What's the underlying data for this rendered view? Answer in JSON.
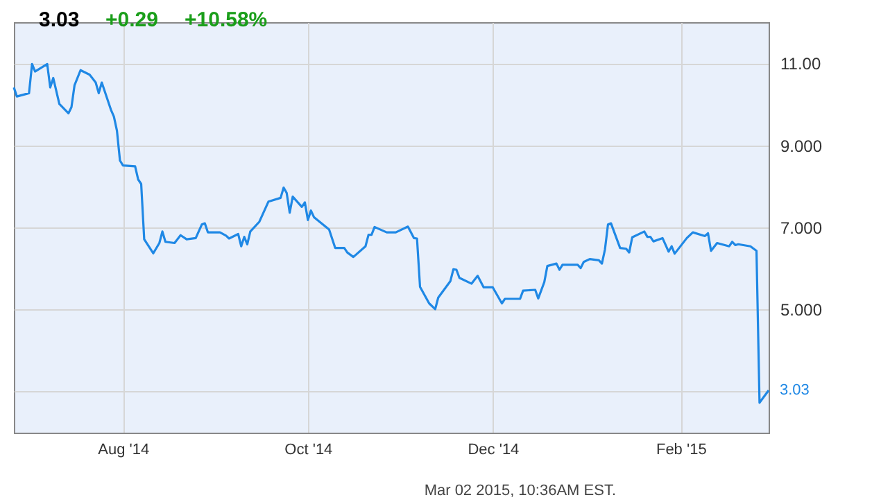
{
  "chart_data": {
    "type": "line",
    "title": "3.03",
    "annotations": [
      "+0.29",
      "+10.58%",
      "Mar 02 2015, 10:36AM EST.",
      {
        "text": "3.03",
        "x": "2015-03-02",
        "y": 3.03
      }
    ],
    "x": [
      "2014-06-26",
      "2014-06-27",
      "2014-07-01",
      "2014-07-02",
      "2014-07-03",
      "2014-07-07",
      "2014-07-08",
      "2014-07-09",
      "2014-07-11",
      "2014-07-14",
      "2014-07-15",
      "2014-07-16",
      "2014-07-18",
      "2014-07-21",
      "2014-07-23",
      "2014-07-24",
      "2014-07-25",
      "2014-07-28",
      "2014-07-29",
      "2014-07-30",
      "2014-07-31",
      "2014-08-01",
      "2014-08-05",
      "2014-08-06",
      "2014-08-07",
      "2014-08-08",
      "2014-08-11",
      "2014-08-13",
      "2014-08-14",
      "2014-08-15",
      "2014-08-18",
      "2014-08-20",
      "2014-08-22",
      "2014-08-25",
      "2014-08-27",
      "2014-08-28",
      "2014-08-29",
      "2014-09-02",
      "2014-09-04",
      "2014-09-05",
      "2014-09-08",
      "2014-09-09",
      "2014-09-10",
      "2014-09-11",
      "2014-09-12",
      "2014-09-15",
      "2014-09-18",
      "2014-09-22",
      "2014-09-23",
      "2014-09-24",
      "2014-09-25",
      "2014-09-26",
      "2014-09-29",
      "2014-09-30",
      "2014-10-01",
      "2014-10-02",
      "2014-10-03",
      "2014-10-08",
      "2014-10-10",
      "2014-10-13",
      "2014-10-14",
      "2014-10-16",
      "2014-10-20",
      "2014-10-21",
      "2014-10-22",
      "2014-10-23",
      "2014-10-27",
      "2014-10-30",
      "2014-11-03",
      "2014-11-05",
      "2014-11-06",
      "2014-11-07",
      "2014-11-10",
      "2014-11-12",
      "2014-11-13",
      "2014-11-17",
      "2014-11-18",
      "2014-11-19",
      "2014-11-20",
      "2014-11-24",
      "2014-11-26",
      "2014-11-28",
      "2014-12-01",
      "2014-12-04",
      "2014-12-05",
      "2014-12-10",
      "2014-12-11",
      "2014-12-15",
      "2014-12-16",
      "2014-12-18",
      "2014-12-19",
      "2014-12-22",
      "2014-12-23",
      "2014-12-24",
      "2014-12-29",
      "2014-12-30",
      "2014-12-31",
      "2015-01-02",
      "2015-01-05",
      "2015-01-06",
      "2015-01-07",
      "2015-01-08",
      "2015-01-09",
      "2015-01-12",
      "2015-01-14",
      "2015-01-15",
      "2015-01-16",
      "2015-01-20",
      "2015-01-21",
      "2015-01-22",
      "2015-01-23",
      "2015-01-26",
      "2015-01-28",
      "2015-01-29",
      "2015-01-30",
      "2015-02-03",
      "2015-02-05",
      "2015-02-09",
      "2015-02-10",
      "2015-02-11",
      "2015-02-13",
      "2015-02-17",
      "2015-02-18",
      "2015-02-19",
      "2015-02-20",
      "2015-02-24",
      "2015-02-26",
      "2015-02-27",
      "2015-03-02"
    ],
    "series": [
      {
        "color": "#1f88e5",
        "values": [
          10.41,
          10.19,
          10.27,
          10.98,
          10.8,
          10.98,
          10.41,
          10.64,
          10.01,
          9.78,
          9.93,
          10.46,
          10.83,
          10.72,
          10.53,
          10.27,
          10.53,
          9.87,
          9.7,
          9.36,
          8.63,
          8.51,
          8.49,
          8.17,
          8.06,
          6.71,
          6.37,
          6.62,
          6.9,
          6.65,
          6.62,
          6.81,
          6.71,
          6.74,
          7.07,
          7.1,
          6.88,
          6.88,
          6.8,
          6.73,
          6.84,
          6.54,
          6.77,
          6.59,
          6.9,
          7.14,
          7.63,
          7.72,
          7.97,
          7.84,
          7.36,
          7.75,
          7.5,
          7.61,
          7.18,
          7.41,
          7.25,
          6.95,
          6.5,
          6.5,
          6.39,
          6.28,
          6.54,
          6.82,
          6.82,
          7.01,
          6.88,
          6.88,
          7.02,
          6.74,
          6.73,
          5.55,
          5.15,
          5.01,
          5.29,
          5.69,
          5.98,
          5.97,
          5.77,
          5.63,
          5.82,
          5.54,
          5.54,
          5.15,
          5.26,
          5.26,
          5.46,
          5.48,
          5.27,
          5.67,
          6.06,
          6.12,
          5.97,
          6.09,
          6.09,
          6.01,
          6.16,
          6.23,
          6.2,
          6.12,
          6.46,
          7.07,
          7.1,
          6.5,
          6.48,
          6.39,
          6.76,
          6.9,
          6.77,
          6.77,
          6.66,
          6.74,
          6.41,
          6.54,
          6.36,
          6.74,
          6.88,
          6.79,
          6.86,
          6.43,
          6.62,
          6.54,
          6.65,
          6.57,
          6.59,
          6.54,
          6.43,
          2.73,
          3.03
        ]
      }
    ],
    "xlim": [
      "2014-06-26",
      "2015-03-02"
    ],
    "xticks": [
      {
        "value": "2014-08-01",
        "label": "Aug '14"
      },
      {
        "value": "2014-10-01",
        "label": "Oct '14"
      },
      {
        "value": "2014-12-01",
        "label": "Dec '14"
      },
      {
        "value": "2015-02-01",
        "label": "Feb '15"
      }
    ],
    "ylim": [
      2,
      12
    ],
    "yticks": [
      {
        "value": 3,
        "label": null
      },
      {
        "value": 5,
        "label": "5.000"
      },
      {
        "value": 7,
        "label": "7.000"
      },
      {
        "value": 9,
        "label": "9.000"
      },
      {
        "value": 11,
        "label": "11.00"
      }
    ],
    "grid": true,
    "marker": "none",
    "line_style": "solid"
  }
}
